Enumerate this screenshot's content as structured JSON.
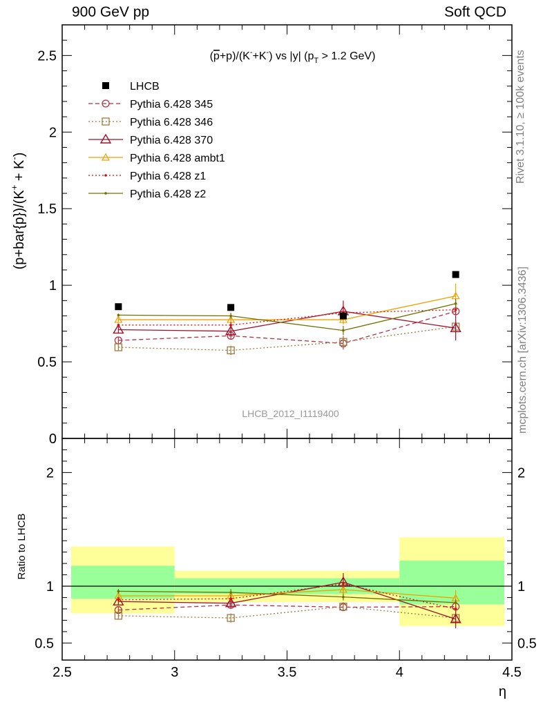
{
  "header": {
    "left": "900 GeV pp",
    "right": "Soft QCD"
  },
  "side": {
    "rivet": "Rivet 3.1.10, ≥ 100k events",
    "mcplots": "mcplots.cern.ch [arXiv:1306.3436]"
  },
  "chart_data": [
    {
      "type": "scatter",
      "title_parts": [
        "(",
        "p",
        "+p)/(K",
        "-",
        "+K",
        "-",
        ") vs |y| (p",
        "T",
        " > 1.2 GeV)"
      ],
      "ylabel_parts": [
        "(p+bar{p})/(K",
        "+",
        " + K",
        "-",
        ")"
      ],
      "watermark": "LHCB_2012_I1119400",
      "xlim": [
        2.5,
        4.5
      ],
      "ylim": [
        0,
        2.7
      ],
      "y_ticks": [
        0,
        0.5,
        1,
        1.5,
        2,
        2.5
      ],
      "y_tick_labels": [
        "0",
        "0.5",
        "1",
        "1.5",
        "2",
        "2.5"
      ],
      "x": [
        2.75,
        3.25,
        3.75,
        4.25
      ],
      "x_bins": [
        [
          2.5,
          3.0
        ],
        [
          3.0,
          3.5
        ],
        [
          3.5,
          4.0
        ],
        [
          4.0,
          4.5
        ]
      ],
      "legend_position": "top-left",
      "data": {
        "name": "LHCB",
        "color": "#000000",
        "marker": "filled-square",
        "values": [
          0.86,
          0.855,
          0.8,
          1.07
        ]
      },
      "series": [
        {
          "name": "Pythia 6.428 345",
          "color": "#b03048",
          "dash": "6,4",
          "marker": "open-circle",
          "values": [
            0.64,
            0.67,
            0.62,
            0.83
          ],
          "errors": [
            0.02,
            0.02,
            0.04,
            0.03
          ]
        },
        {
          "name": "Pythia 6.428 346",
          "color": "#a0783c",
          "dash": "2,3",
          "marker": "open-square",
          "values": [
            0.595,
            0.575,
            0.63,
            0.73
          ],
          "errors": [
            0.02,
            0.03,
            0.04,
            0.04
          ]
        },
        {
          "name": "Pythia 6.428 370",
          "color": "#a01028",
          "dash": "",
          "marker": "open-triangle",
          "values": [
            0.71,
            0.7,
            0.83,
            0.72
          ],
          "errors": [
            0.02,
            0.03,
            0.07,
            0.08
          ]
        },
        {
          "name": "Pythia 6.428 ambt1",
          "color": "#f0a000",
          "dash": "",
          "marker": "open-triangle-small",
          "values": [
            0.775,
            0.775,
            0.775,
            0.93
          ],
          "errors": [
            0.02,
            0.02,
            0.03,
            0.08
          ]
        },
        {
          "name": "Pythia 6.428 z1",
          "color": "#d01010",
          "dash": "2,3",
          "marker": "dot",
          "values": [
            0.74,
            0.74,
            0.82,
            0.84
          ],
          "errors": [
            0.01,
            0.02,
            0.03,
            0.03
          ]
        },
        {
          "name": "Pythia 6.428 z2",
          "color": "#707000",
          "dash": "",
          "marker": "dot",
          "values": [
            0.805,
            0.8,
            0.705,
            0.88
          ],
          "errors": [
            0.01,
            0.02,
            0.03,
            0.03
          ]
        }
      ]
    },
    {
      "type": "scatter",
      "ylabel": "Ratio to LHCB",
      "xlabel": "η",
      "xlim": [
        2.5,
        4.5
      ],
      "ylim": [
        0.35,
        2.3
      ],
      "x_ticks": [
        2.5,
        3,
        3.5,
        4,
        4.5
      ],
      "x_tick_labels": [
        "2.5",
        "3",
        "3.5",
        "4",
        "4.5"
      ],
      "y_ticks": [
        0.5,
        1,
        2
      ],
      "y_tick_labels": [
        "0.5",
        "1",
        "2"
      ],
      "reference_line": 1,
      "bands": [
        {
          "x": [
            2.5,
            3.0
          ],
          "yellow": [
            0.76,
            1.35
          ],
          "green": [
            0.89,
            1.18
          ]
        },
        {
          "x": [
            3.0,
            3.5
          ],
          "yellow": [
            0.86,
            1.135
          ],
          "green": [
            0.93,
            1.07
          ]
        },
        {
          "x": [
            3.5,
            4.0
          ],
          "yellow": [
            0.86,
            1.135
          ],
          "green": [
            0.93,
            1.07
          ]
        },
        {
          "x": [
            4.0,
            4.5
          ],
          "yellow": [
            0.65,
            1.43
          ],
          "green": [
            0.84,
            1.225
          ]
        }
      ],
      "series": [
        {
          "name": "Pythia 6.428 345",
          "values": [
            0.79,
            0.835,
            0.815,
            0.82
          ],
          "errors": [
            0.03,
            0.03,
            0.03,
            0.03
          ]
        },
        {
          "name": "Pythia 6.428 346",
          "values": [
            0.74,
            0.72,
            0.82,
            0.72
          ],
          "errors": [
            0.03,
            0.04,
            0.04,
            0.04
          ]
        },
        {
          "name": "Pythia 6.428 370",
          "values": [
            0.865,
            0.85,
            1.035,
            0.71
          ],
          "errors": [
            0.03,
            0.04,
            0.08,
            0.08
          ]
        },
        {
          "name": "Pythia 6.428 ambt1",
          "values": [
            0.915,
            0.915,
            0.97,
            0.895
          ],
          "errors": [
            0.03,
            0.03,
            0.04,
            0.07
          ]
        },
        {
          "name": "Pythia 6.428 z1",
          "values": [
            0.88,
            0.89,
            1.02,
            0.8
          ],
          "errors": [
            0.02,
            0.03,
            0.03,
            0.03
          ]
        },
        {
          "name": "Pythia 6.428 z2",
          "values": [
            0.955,
            0.945,
            0.905,
            0.855
          ],
          "errors": [
            0.02,
            0.03,
            0.03,
            0.03
          ]
        }
      ]
    }
  ]
}
